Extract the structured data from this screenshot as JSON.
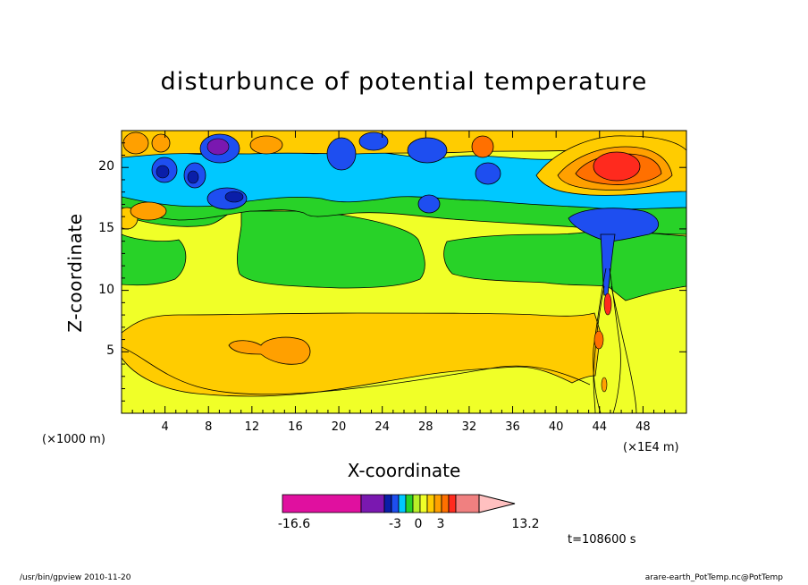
{
  "title": "disturbunce of potential temperature",
  "footer": {
    "left": "/usr/bin/gpview  2010-11-20",
    "right": "arare-earth_PotTemp.nc@PotTemp"
  },
  "time_label": "t=108600 s",
  "chart_data": {
    "type": "heatmap",
    "title": "disturbunce of potential temperature",
    "xlabel": "X-coordinate",
    "ylabel": "Z-coordinate",
    "x_unit_left": "(×1000 m)",
    "x_unit_right": "(×1E4 m)",
    "xlim": [
      0,
      52
    ],
    "ylim": [
      0,
      23
    ],
    "x_ticks": [
      4,
      8,
      12,
      16,
      20,
      24,
      28,
      32,
      36,
      40,
      44,
      48
    ],
    "x_tick_labels": [
      "4",
      "8",
      "12",
      "16",
      "20",
      "24",
      "28",
      "32",
      "36",
      "40",
      "44",
      "48"
    ],
    "y_ticks": [
      5,
      10,
      15,
      20
    ],
    "y_tick_labels": [
      "5",
      "10",
      "15",
      "20"
    ],
    "colorbar": {
      "min": -16.6,
      "max": 13.2,
      "labels": [
        "-16.6",
        "-3",
        "0",
        "3",
        "13.2"
      ],
      "level_colors": [
        "#e0109f",
        "#7a18b0",
        "#0a1ea8",
        "#1e4ef0",
        "#00c8ff",
        "#28d228",
        "#b8f028",
        "#f0ff28",
        "#ffcc00",
        "#ffa000",
        "#ff7000",
        "#ff2a1e",
        "#f08080",
        "#ffc0c0"
      ]
    },
    "colors": {
      "base_level": "#f0ff28",
      "warm_levels": [
        "#ffcc00",
        "#ffa000",
        "#ff7000",
        "#ff2a1e"
      ],
      "cool_levels": [
        "#28d228",
        "#00c8ff",
        "#1e4ef0",
        "#0a1ea8",
        "#7a18b0"
      ]
    }
  }
}
